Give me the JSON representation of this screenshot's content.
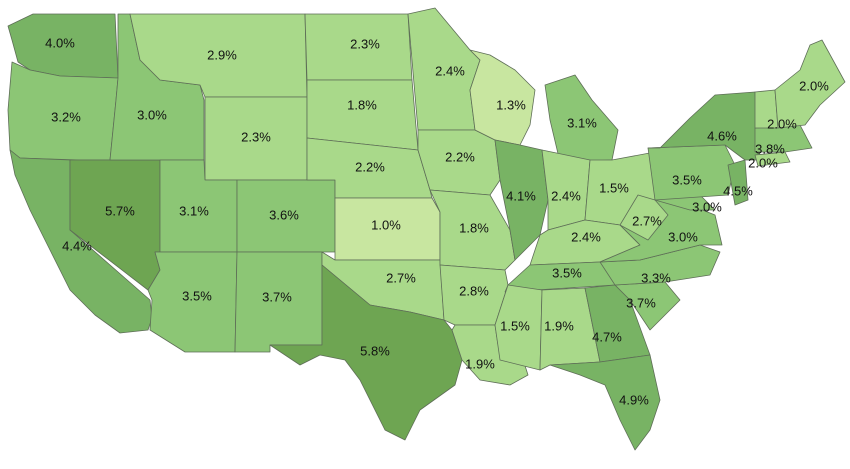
{
  "colors": {
    "background": "#ffffff",
    "border": "#5e6e57",
    "label": "#111111",
    "scale": {
      "lightest": "#c8e6a0",
      "light": "#a9d98a",
      "medium": "#8cc675",
      "dark": "#78b364",
      "darkest": "#6ea552"
    }
  },
  "chart_data": {
    "type": "choropleth",
    "regions": [
      {
        "id": "WA",
        "value": 4.0,
        "label": "4.0%"
      },
      {
        "id": "OR",
        "value": 3.2,
        "label": "3.2%"
      },
      {
        "id": "CA",
        "value": 4.4,
        "label": "4.4%"
      },
      {
        "id": "NV",
        "value": 5.7,
        "label": "5.7%"
      },
      {
        "id": "ID",
        "value": 3.0,
        "label": "3.0%"
      },
      {
        "id": "MT",
        "value": 2.9,
        "label": "2.9%"
      },
      {
        "id": "WY",
        "value": 2.3,
        "label": "2.3%"
      },
      {
        "id": "UT",
        "value": 3.1,
        "label": "3.1%"
      },
      {
        "id": "AZ",
        "value": 3.5,
        "label": "3.5%"
      },
      {
        "id": "CO",
        "value": 3.6,
        "label": "3.6%"
      },
      {
        "id": "NM",
        "value": 3.7,
        "label": "3.7%"
      },
      {
        "id": "ND",
        "value": 2.3,
        "label": "2.3%"
      },
      {
        "id": "SD",
        "value": 1.8,
        "label": "1.8%"
      },
      {
        "id": "NE",
        "value": 2.2,
        "label": "2.2%"
      },
      {
        "id": "KS",
        "value": 1.0,
        "label": "1.0%"
      },
      {
        "id": "OK",
        "value": 2.7,
        "label": "2.7%"
      },
      {
        "id": "TX",
        "value": 5.8,
        "label": "5.8%"
      },
      {
        "id": "MN",
        "value": 2.4,
        "label": "2.4%"
      },
      {
        "id": "IA",
        "value": 2.2,
        "label": "2.2%"
      },
      {
        "id": "MO",
        "value": 1.8,
        "label": "1.8%"
      },
      {
        "id": "AR",
        "value": 2.8,
        "label": "2.8%"
      },
      {
        "id": "LA",
        "value": 1.9,
        "label": "1.9%"
      },
      {
        "id": "WI",
        "value": 1.3,
        "label": "1.3%"
      },
      {
        "id": "IL",
        "value": 4.1,
        "label": "4.1%"
      },
      {
        "id": "MI",
        "value": 3.1,
        "label": "3.1%"
      },
      {
        "id": "IN",
        "value": 2.4,
        "label": "2.4%"
      },
      {
        "id": "OH",
        "value": 1.5,
        "label": "1.5%"
      },
      {
        "id": "KY",
        "value": 2.4,
        "label": "2.4%"
      },
      {
        "id": "TN",
        "value": 3.5,
        "label": "3.5%"
      },
      {
        "id": "MS",
        "value": 1.5,
        "label": "1.5%"
      },
      {
        "id": "AL",
        "value": 1.9,
        "label": "1.9%"
      },
      {
        "id": "GA",
        "value": 4.7,
        "label": "4.7%"
      },
      {
        "id": "FL",
        "value": 4.9,
        "label": "4.9%"
      },
      {
        "id": "SC",
        "value": 3.7,
        "label": "3.7%"
      },
      {
        "id": "NC",
        "value": 3.3,
        "label": "3.3%"
      },
      {
        "id": "VA",
        "value": 3.0,
        "label": "3.0%"
      },
      {
        "id": "WV",
        "value": 2.7,
        "label": "2.7%"
      },
      {
        "id": "MD",
        "value": 3.0,
        "label": "3.0%"
      },
      {
        "id": "PA",
        "value": 3.5,
        "label": "3.5%"
      },
      {
        "id": "NJ",
        "value": 4.5,
        "label": "4.5%"
      },
      {
        "id": "NY",
        "value": 4.6,
        "label": "4.6%"
      },
      {
        "id": "CT",
        "value": 2.0,
        "label": "2.0%"
      },
      {
        "id": "MA",
        "value": 3.8,
        "label": "3.8%"
      },
      {
        "id": "VT",
        "value": 2.0,
        "label": "2.0%"
      },
      {
        "id": "ME",
        "value": 2.0,
        "label": "2.0%"
      }
    ]
  }
}
